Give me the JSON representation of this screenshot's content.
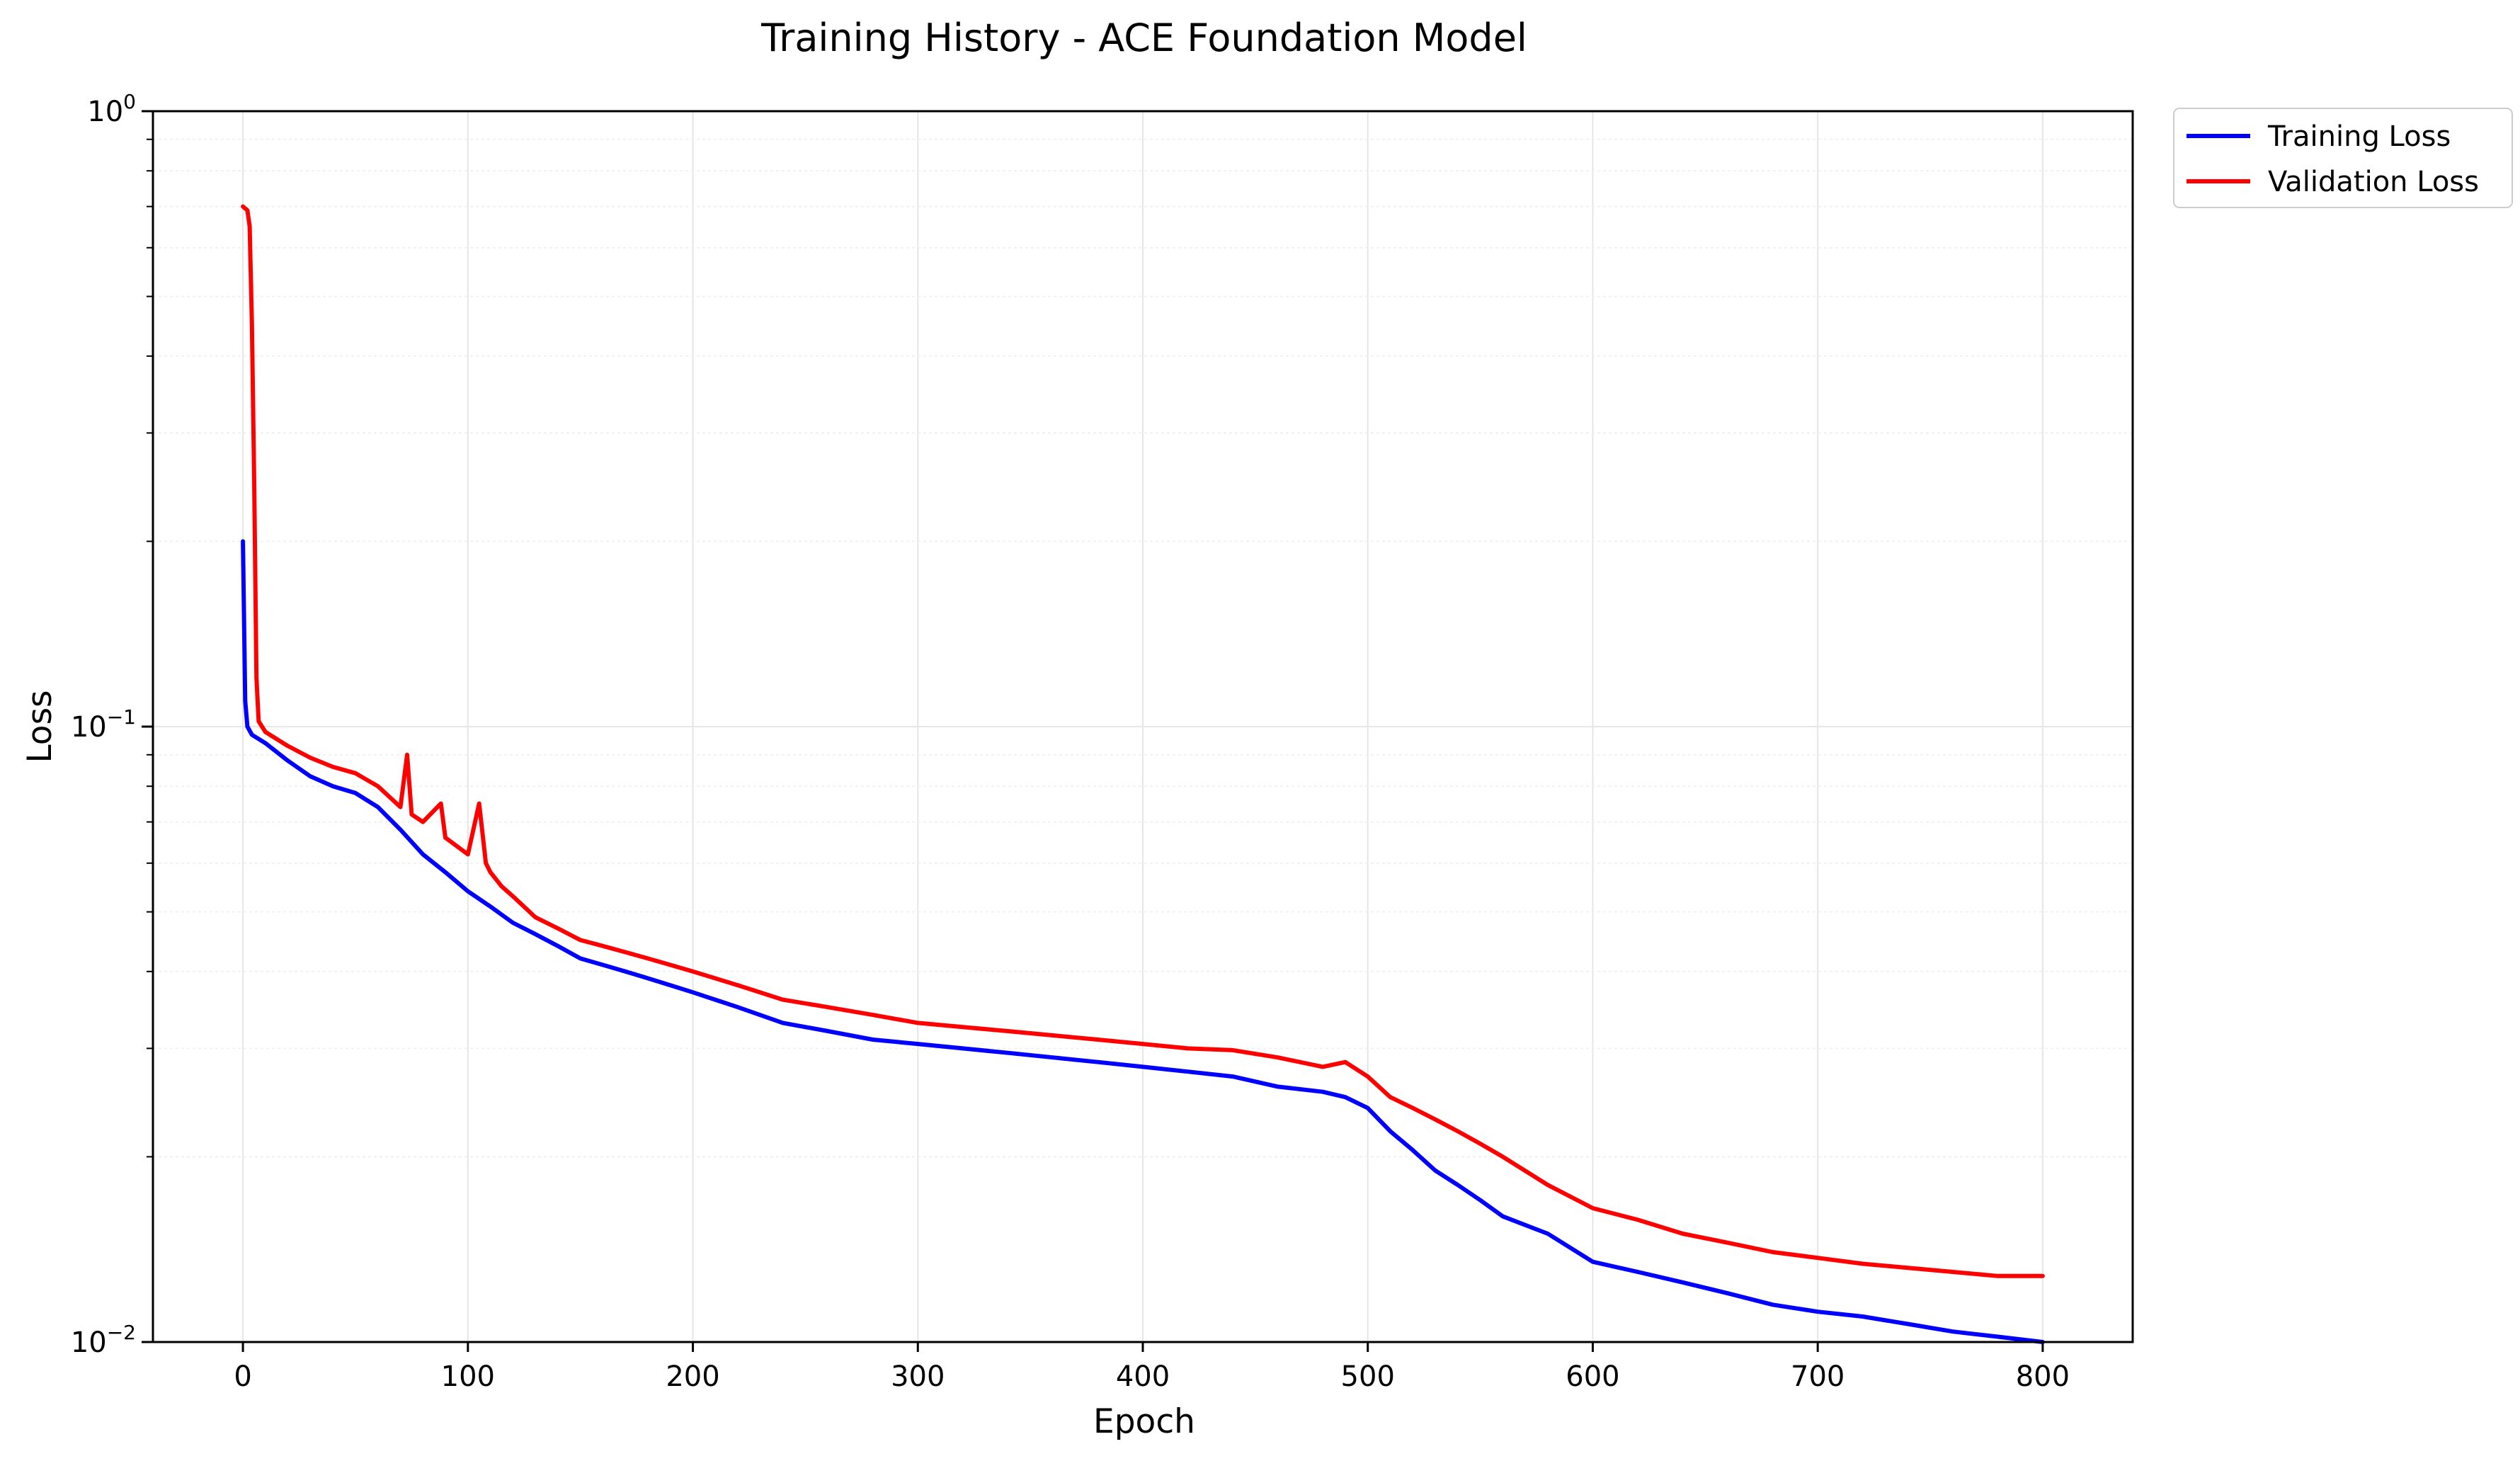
{
  "chart_data": {
    "type": "line",
    "title": "Training History - ACE Foundation Model",
    "xlabel": "Epoch",
    "ylabel": "Loss",
    "xlim": [
      -40,
      840
    ],
    "ylim": [
      0.01,
      1
    ],
    "yscale": "log",
    "x_ticks": [
      0,
      100,
      200,
      300,
      400,
      500,
      600,
      700,
      800
    ],
    "x_tick_labels": [
      "0",
      "100",
      "200",
      "300",
      "400",
      "500",
      "600",
      "700",
      "800"
    ],
    "y_ticks": [
      {
        "value": 1,
        "base": "10",
        "exp": "0"
      },
      {
        "value": 0.1,
        "base": "10",
        "exp": "−1"
      },
      {
        "value": 0.01,
        "base": "10",
        "exp": "−2"
      }
    ],
    "grid": true,
    "legend_position": "outside-top-right",
    "series": [
      {
        "name": "Training Loss",
        "color": "#0000ff",
        "points": [
          [
            0,
            0.2
          ],
          [
            1,
            0.11
          ],
          [
            2,
            0.1
          ],
          [
            4,
            0.097
          ],
          [
            10,
            0.094
          ],
          [
            20,
            0.088
          ],
          [
            30,
            0.083
          ],
          [
            40,
            0.08
          ],
          [
            50,
            0.078
          ],
          [
            60,
            0.074
          ],
          [
            70,
            0.068
          ],
          [
            80,
            0.062
          ],
          [
            90,
            0.058
          ],
          [
            100,
            0.054
          ],
          [
            110,
            0.051
          ],
          [
            120,
            0.048
          ],
          [
            130,
            0.046
          ],
          [
            140,
            0.044
          ],
          [
            150,
            0.042
          ],
          [
            160,
            0.041
          ],
          [
            170,
            0.04
          ],
          [
            180,
            0.039
          ],
          [
            190,
            0.038
          ],
          [
            200,
            0.037
          ],
          [
            220,
            0.035
          ],
          [
            240,
            0.033
          ],
          [
            260,
            0.032
          ],
          [
            280,
            0.031
          ],
          [
            300,
            0.0305
          ],
          [
            320,
            0.03
          ],
          [
            340,
            0.0295
          ],
          [
            360,
            0.029
          ],
          [
            380,
            0.0285
          ],
          [
            400,
            0.028
          ],
          [
            420,
            0.0275
          ],
          [
            440,
            0.027
          ],
          [
            460,
            0.026
          ],
          [
            480,
            0.0255
          ],
          [
            490,
            0.025
          ],
          [
            500,
            0.024
          ],
          [
            510,
            0.022
          ],
          [
            520,
            0.0205
          ],
          [
            530,
            0.019
          ],
          [
            540,
            0.018
          ],
          [
            550,
            0.017
          ],
          [
            560,
            0.016
          ],
          [
            580,
            0.015
          ],
          [
            600,
            0.0135
          ],
          [
            620,
            0.013
          ],
          [
            640,
            0.0125
          ],
          [
            660,
            0.012
          ],
          [
            680,
            0.0115
          ],
          [
            700,
            0.0112
          ],
          [
            720,
            0.011
          ],
          [
            740,
            0.0107
          ],
          [
            760,
            0.0104
          ],
          [
            780,
            0.0102
          ],
          [
            800,
            0.01
          ]
        ]
      },
      {
        "name": "Validation Loss",
        "color": "#ff0000",
        "points": [
          [
            0,
            0.7
          ],
          [
            2,
            0.69
          ],
          [
            3,
            0.65
          ],
          [
            4,
            0.45
          ],
          [
            5,
            0.25
          ],
          [
            6,
            0.12
          ],
          [
            7,
            0.102
          ],
          [
            10,
            0.098
          ],
          [
            20,
            0.093
          ],
          [
            30,
            0.089
          ],
          [
            40,
            0.086
          ],
          [
            50,
            0.084
          ],
          [
            60,
            0.08
          ],
          [
            70,
            0.074
          ],
          [
            73,
            0.09
          ],
          [
            75,
            0.072
          ],
          [
            80,
            0.07
          ],
          [
            88,
            0.075
          ],
          [
            90,
            0.066
          ],
          [
            100,
            0.062
          ],
          [
            105,
            0.075
          ],
          [
            108,
            0.06
          ],
          [
            110,
            0.058
          ],
          [
            115,
            0.055
          ],
          [
            120,
            0.053
          ],
          [
            130,
            0.049
          ],
          [
            140,
            0.047
          ],
          [
            150,
            0.045
          ],
          [
            160,
            0.044
          ],
          [
            170,
            0.043
          ],
          [
            180,
            0.042
          ],
          [
            190,
            0.041
          ],
          [
            200,
            0.04
          ],
          [
            220,
            0.038
          ],
          [
            240,
            0.036
          ],
          [
            260,
            0.035
          ],
          [
            280,
            0.034
          ],
          [
            300,
            0.033
          ],
          [
            320,
            0.0325
          ],
          [
            340,
            0.032
          ],
          [
            360,
            0.0315
          ],
          [
            380,
            0.031
          ],
          [
            400,
            0.0305
          ],
          [
            420,
            0.03
          ],
          [
            440,
            0.0298
          ],
          [
            460,
            0.029
          ],
          [
            480,
            0.028
          ],
          [
            490,
            0.0285
          ],
          [
            500,
            0.027
          ],
          [
            510,
            0.025
          ],
          [
            520,
            0.024
          ],
          [
            530,
            0.023
          ],
          [
            540,
            0.022
          ],
          [
            550,
            0.021
          ],
          [
            560,
            0.02
          ],
          [
            580,
            0.018
          ],
          [
            600,
            0.0165
          ],
          [
            620,
            0.0158
          ],
          [
            640,
            0.015
          ],
          [
            660,
            0.0145
          ],
          [
            680,
            0.014
          ],
          [
            700,
            0.0137
          ],
          [
            720,
            0.0134
          ],
          [
            740,
            0.0132
          ],
          [
            760,
            0.013
          ],
          [
            780,
            0.0128
          ],
          [
            800,
            0.0128
          ]
        ]
      }
    ]
  }
}
